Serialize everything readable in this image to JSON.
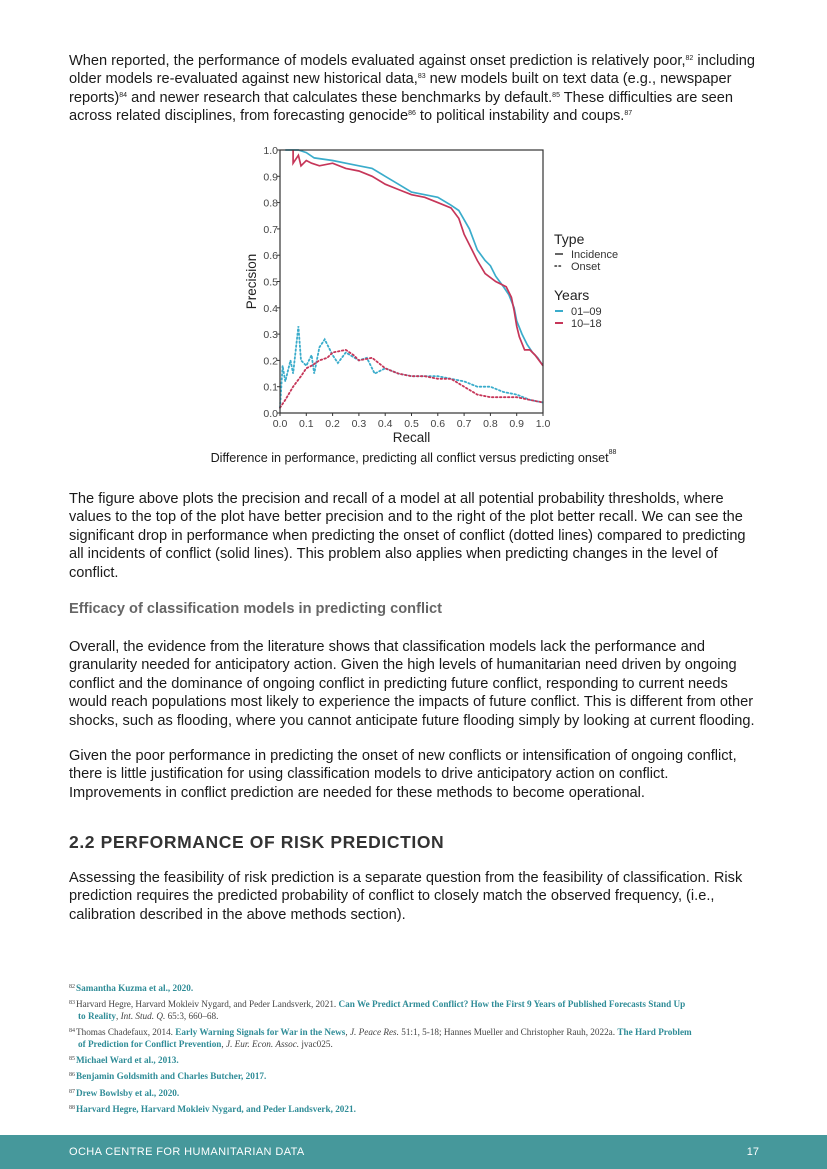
{
  "paragraphs": {
    "intro": {
      "t1": "When reported, the performance of models evaluated against onset prediction is relatively poor,",
      "s1": "82",
      "t2": " including older models re-evaluated against new historical data,",
      "s2": "83",
      "t3": " new models built on text data (e.g., newspaper reports)",
      "s3": "84",
      "t4": " and newer research that calculates these benchmarks by default.",
      "s4": "85",
      "t5": " These difficulties are seen across related disciplines, from forecasting genocide",
      "s5": "86",
      "t6": " to political instability and coups.",
      "s6": "87"
    },
    "figure_description": "The figure above plots the precision and recall of a model at all potential probability thresholds, where values to the top of the plot have better precision and to the right of the plot better recall. We can see the significant drop in performance when predicting the onset of conflict (dotted lines) compared to predicting all incidents of conflict (solid lines). This problem also applies when predicting changes in the level of conflict.",
    "efficacy_1": "Overall, the evidence from the literature shows that classification models lack the performance and granularity needed for anticipatory action. Given the high levels of humanitarian need driven by ongoing conflict and the dominance of ongoing conflict in predicting future conflict, responding to current needs would reach populations most likely to experience the impacts of future conflict. This is different from other shocks, such as flooding, where you cannot anticipate future flooding simply by looking at current flooding.",
    "efficacy_2": "Given the poor performance in predicting the onset of new conflicts or intensification of ongoing conflict, there is little justification for using classification models to drive anticipatory action on conflict. Improvements in conflict prediction are needed for these methods to become operational.",
    "risk": "Assessing the feasibility of risk prediction is a separate question from the feasibility of classification. Risk prediction requires the predicted probability of conflict to closely match the observed frequency, (i.e., calibration described in the above methods section)."
  },
  "caption": {
    "text": "Difference in performance, predicting all conflict versus predicting onset",
    "sup": "88"
  },
  "headings": {
    "efficacy": "Efficacy of classification models in predicting conflict",
    "section": "2.2 PERFORMANCE OF RISK PREDICTION"
  },
  "chart_data": {
    "type": "line",
    "xlabel": "Recall",
    "ylabel": "Precision",
    "xlim": [
      0,
      1
    ],
    "ylim": [
      0,
      1
    ],
    "xticks": [
      "0.0",
      "0.1",
      "0.2",
      "0.3",
      "0.4",
      "0.5",
      "0.6",
      "0.7",
      "0.8",
      "0.9",
      "1.0"
    ],
    "yticks": [
      "0.0",
      "0.1",
      "0.2",
      "0.3",
      "0.4",
      "0.5",
      "0.6",
      "0.7",
      "0.8",
      "0.9",
      "1.0"
    ],
    "grid": false,
    "legend": {
      "placement": "right",
      "type_title": "Type",
      "type_entries": [
        {
          "label": "Incidence",
          "style": "solid"
        },
        {
          "label": "Onset",
          "style": "dotted"
        }
      ],
      "years_title": "Years",
      "years_entries": [
        {
          "label": "01–09",
          "color": "#3aaccb"
        },
        {
          "label": "10–18",
          "color": "#c63659"
        }
      ]
    },
    "series": [
      {
        "type": "Incidence",
        "years": "01–09",
        "color": "#3aaccb",
        "style": "solid",
        "points": [
          [
            0.02,
            1.0
          ],
          [
            0.07,
            1.0
          ],
          [
            0.1,
            0.99
          ],
          [
            0.13,
            0.97
          ],
          [
            0.2,
            0.96
          ],
          [
            0.25,
            0.95
          ],
          [
            0.3,
            0.94
          ],
          [
            0.35,
            0.93
          ],
          [
            0.4,
            0.9
          ],
          [
            0.45,
            0.87
          ],
          [
            0.5,
            0.84
          ],
          [
            0.55,
            0.83
          ],
          [
            0.6,
            0.82
          ],
          [
            0.65,
            0.79
          ],
          [
            0.68,
            0.77
          ],
          [
            0.72,
            0.7
          ],
          [
            0.75,
            0.62
          ],
          [
            0.78,
            0.58
          ],
          [
            0.8,
            0.56
          ],
          [
            0.82,
            0.52
          ],
          [
            0.85,
            0.48
          ],
          [
            0.87,
            0.45
          ],
          [
            0.89,
            0.4
          ],
          [
            0.9,
            0.35
          ],
          [
            0.92,
            0.3
          ],
          [
            0.94,
            0.26
          ],
          [
            0.96,
            0.23
          ],
          [
            0.98,
            0.21
          ],
          [
            1.0,
            0.18
          ]
        ]
      },
      {
        "type": "Incidence",
        "years": "10–18",
        "color": "#c63659",
        "style": "solid",
        "points": [
          [
            0.05,
            1.0
          ],
          [
            0.05,
            0.95
          ],
          [
            0.07,
            0.98
          ],
          [
            0.08,
            0.94
          ],
          [
            0.1,
            0.96
          ],
          [
            0.12,
            0.95
          ],
          [
            0.15,
            0.94
          ],
          [
            0.2,
            0.95
          ],
          [
            0.25,
            0.93
          ],
          [
            0.3,
            0.92
          ],
          [
            0.35,
            0.9
          ],
          [
            0.4,
            0.87
          ],
          [
            0.45,
            0.85
          ],
          [
            0.5,
            0.83
          ],
          [
            0.55,
            0.82
          ],
          [
            0.6,
            0.8
          ],
          [
            0.65,
            0.78
          ],
          [
            0.68,
            0.74
          ],
          [
            0.7,
            0.68
          ],
          [
            0.73,
            0.62
          ],
          [
            0.75,
            0.58
          ],
          [
            0.78,
            0.53
          ],
          [
            0.82,
            0.5
          ],
          [
            0.86,
            0.48
          ],
          [
            0.88,
            0.44
          ],
          [
            0.89,
            0.39
          ],
          [
            0.9,
            0.33
          ],
          [
            0.91,
            0.29
          ],
          [
            0.93,
            0.24
          ],
          [
            0.95,
            0.24
          ],
          [
            0.97,
            0.22
          ],
          [
            1.0,
            0.18
          ]
        ]
      },
      {
        "type": "Onset",
        "years": "01–09",
        "color": "#3aaccb",
        "style": "dotted",
        "points": [
          [
            0.0,
            0.02
          ],
          [
            0.01,
            0.18
          ],
          [
            0.02,
            0.12
          ],
          [
            0.04,
            0.2
          ],
          [
            0.05,
            0.15
          ],
          [
            0.07,
            0.33
          ],
          [
            0.08,
            0.2
          ],
          [
            0.1,
            0.18
          ],
          [
            0.12,
            0.22
          ],
          [
            0.13,
            0.15
          ],
          [
            0.15,
            0.25
          ],
          [
            0.17,
            0.28
          ],
          [
            0.2,
            0.22
          ],
          [
            0.22,
            0.19
          ],
          [
            0.25,
            0.23
          ],
          [
            0.3,
            0.2
          ],
          [
            0.33,
            0.21
          ],
          [
            0.36,
            0.15
          ],
          [
            0.4,
            0.17
          ],
          [
            0.45,
            0.15
          ],
          [
            0.5,
            0.14
          ],
          [
            0.55,
            0.14
          ],
          [
            0.6,
            0.14
          ],
          [
            0.65,
            0.13
          ],
          [
            0.7,
            0.12
          ],
          [
            0.75,
            0.1
          ],
          [
            0.8,
            0.1
          ],
          [
            0.85,
            0.08
          ],
          [
            0.9,
            0.07
          ],
          [
            0.95,
            0.05
          ],
          [
            1.0,
            0.04
          ]
        ]
      },
      {
        "type": "Onset",
        "years": "10–18",
        "color": "#c63659",
        "style": "dotted",
        "points": [
          [
            0.0,
            0.02
          ],
          [
            0.02,
            0.05
          ],
          [
            0.05,
            0.1
          ],
          [
            0.08,
            0.14
          ],
          [
            0.1,
            0.17
          ],
          [
            0.12,
            0.18
          ],
          [
            0.15,
            0.2
          ],
          [
            0.18,
            0.21
          ],
          [
            0.2,
            0.23
          ],
          [
            0.25,
            0.24
          ],
          [
            0.28,
            0.22
          ],
          [
            0.3,
            0.2
          ],
          [
            0.35,
            0.21
          ],
          [
            0.4,
            0.17
          ],
          [
            0.45,
            0.15
          ],
          [
            0.5,
            0.14
          ],
          [
            0.55,
            0.14
          ],
          [
            0.6,
            0.13
          ],
          [
            0.65,
            0.13
          ],
          [
            0.7,
            0.1
          ],
          [
            0.75,
            0.07
          ],
          [
            0.8,
            0.06
          ],
          [
            0.85,
            0.06
          ],
          [
            0.9,
            0.06
          ],
          [
            0.95,
            0.05
          ],
          [
            1.0,
            0.04
          ]
        ]
      }
    ]
  },
  "footnotes": [
    {
      "num": "82",
      "parts": [
        {
          "text": "Samantha Kuzma et al., 2020.",
          "style": "link"
        }
      ]
    },
    {
      "num": "83",
      "parts": [
        {
          "text": "Harvard Hegre, Harvard Mokleiv Nygard, and Peder Landsverk, 2021. ",
          "style": "plain"
        },
        {
          "text": "Can We Predict Armed Conflict? How the First 9 Years of Published Forecasts Stand Up",
          "style": "link"
        }
      ],
      "line2": [
        {
          "text": "to Reality",
          "style": "link"
        },
        {
          "text": ", ",
          "style": "plain"
        },
        {
          "text": "Int. Stud. Q.",
          "style": "italic"
        },
        {
          "text": " 65:3, 660–68.",
          "style": "plain"
        }
      ]
    },
    {
      "num": "84",
      "parts": [
        {
          "text": "Thomas Chadefaux, 2014. ",
          "style": "plain"
        },
        {
          "text": "Early Warning Signals for War in the News",
          "style": "link"
        },
        {
          "text": ", ",
          "style": "plain"
        },
        {
          "text": "J. Peace Res.",
          "style": "italic"
        },
        {
          "text": " 51:1, 5-18; Hannes Mueller and Christopher Rauh, 2022a. ",
          "style": "plain"
        },
        {
          "text": "The Hard Problem",
          "style": "link"
        }
      ],
      "line2": [
        {
          "text": "of Prediction for Conflict Prevention",
          "style": "link"
        },
        {
          "text": ", ",
          "style": "plain"
        },
        {
          "text": "J. Eur. Econ. Assoc.",
          "style": "italic"
        },
        {
          "text": " jvac025.",
          "style": "plain"
        }
      ]
    },
    {
      "num": "85",
      "parts": [
        {
          "text": "Michael Ward et al., 2013.",
          "style": "link"
        }
      ]
    },
    {
      "num": "86",
      "parts": [
        {
          "text": "Benjamin Goldsmith and Charles Butcher, 2017.",
          "style": "link"
        }
      ]
    },
    {
      "num": "87",
      "parts": [
        {
          "text": "Drew Bowlsby et al., 2020.",
          "style": "link"
        }
      ]
    },
    {
      "num": "88",
      "parts": [
        {
          "text": "Harvard Hegre, Harvard Mokleiv Nygard, and Peder Landsverk, 2021.",
          "style": "link"
        }
      ]
    }
  ],
  "footer": {
    "org": "OCHA CENTRE FOR HUMANITARIAN DATA",
    "page": "17",
    "bg_color": "#46989b"
  }
}
